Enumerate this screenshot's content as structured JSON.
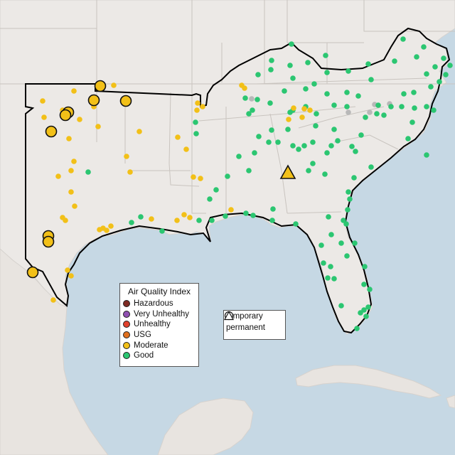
{
  "legend": {
    "title": "Air Quality Index",
    "levels": [
      {
        "label": "Hazardous",
        "color": "#7e2a22"
      },
      {
        "label": "Very Unhealthy",
        "color": "#8f4fb0"
      },
      {
        "label": "Unhealthy",
        "color": "#e0402c"
      },
      {
        "label": "USG",
        "color": "#e0701e"
      },
      {
        "label": "Moderate",
        "color": "#f2c018"
      },
      {
        "label": "Good",
        "color": "#2bc671"
      }
    ]
  },
  "shape_legend": {
    "temporary": "temporary",
    "permanent": "permanent"
  },
  "colors": {
    "water": "#c6d8e4",
    "land": "#ece9e6",
    "border": "#c8c4c0",
    "region_outline": "#000000",
    "inactive": "#b8b8b8"
  },
  "monitors": {
    "good": [
      [
        410,
        62
      ],
      [
        458,
        78
      ],
      [
        382,
        85
      ],
      [
        408,
        92
      ],
      [
        433,
        88
      ],
      [
        460,
        102
      ],
      [
        381,
        98
      ],
      [
        363,
        105
      ],
      [
        412,
        110
      ],
      [
        442,
        118
      ],
      [
        522,
        112
      ],
      [
        430,
        125
      ],
      [
        400,
        128
      ],
      [
        460,
        132
      ],
      [
        488,
        130
      ],
      [
        504,
        135
      ],
      [
        345,
        138
      ],
      [
        362,
        140
      ],
      [
        380,
        145
      ],
      [
        355,
        155
      ],
      [
        350,
        160
      ],
      [
        430,
        150
      ],
      [
        445,
        160
      ],
      [
        408,
        158
      ],
      [
        412,
        155
      ],
      [
        470,
        148
      ],
      [
        488,
        150
      ],
      [
        532,
        148
      ],
      [
        550,
        150
      ],
      [
        565,
        150
      ],
      [
        583,
        152
      ],
      [
        600,
        150
      ],
      [
        610,
        155
      ],
      [
        568,
        132
      ],
      [
        582,
        130
      ],
      [
        606,
        122
      ],
      [
        618,
        115
      ],
      [
        600,
        104
      ],
      [
        612,
        94
      ],
      [
        624,
        82
      ],
      [
        633,
        92
      ],
      [
        627,
        105
      ],
      [
        596,
        66
      ],
      [
        567,
        55
      ],
      [
        586,
        80
      ],
      [
        555,
        86
      ],
      [
        518,
        90
      ],
      [
        490,
        100
      ],
      [
        530,
        160
      ],
      [
        514,
        165
      ],
      [
        540,
        162
      ],
      [
        382,
        183
      ],
      [
        405,
        182
      ],
      [
        444,
        177
      ],
      [
        470,
        182
      ],
      [
        508,
        190
      ],
      [
        475,
        198
      ],
      [
        358,
        215
      ],
      [
        364,
        192
      ],
      [
        440,
        200
      ],
      [
        460,
        215
      ],
      [
        466,
        205
      ],
      [
        440,
        230
      ],
      [
        457,
        245
      ],
      [
        495,
        206
      ],
      [
        500,
        213
      ],
      [
        522,
        235
      ],
      [
        498,
        250
      ],
      [
        490,
        270
      ],
      [
        434,
        240
      ],
      [
        378,
        200
      ],
      [
        391,
        200
      ],
      [
        428,
        205
      ],
      [
        420,
        210
      ],
      [
        412,
        205
      ],
      [
        336,
        220
      ],
      [
        350,
        240
      ],
      [
        320,
        248
      ],
      [
        304,
        267
      ],
      [
        295,
        280
      ],
      [
        275,
        172
      ],
      [
        276,
        188
      ],
      [
        298,
        310
      ],
      [
        317,
        304
      ],
      [
        280,
        310
      ],
      [
        228,
        325
      ],
      [
        185,
        313
      ],
      [
        198,
        305
      ],
      [
        124,
        242
      ],
      [
        346,
        300
      ],
      [
        356,
        303
      ],
      [
        384,
        294
      ],
      [
        383,
        310
      ],
      [
        416,
        315
      ],
      [
        462,
        305
      ],
      [
        466,
        330
      ],
      [
        487,
        315
      ],
      [
        483,
        310
      ],
      [
        489,
        295
      ],
      [
        492,
        280
      ],
      [
        452,
        345
      ],
      [
        455,
        370
      ],
      [
        461,
        391
      ],
      [
        470,
        392
      ],
      [
        480,
        342
      ],
      [
        488,
        360
      ],
      [
        499,
        342
      ],
      [
        513,
        375
      ],
      [
        512,
        400
      ],
      [
        520,
        407
      ],
      [
        518,
        432
      ],
      [
        512,
        436
      ],
      [
        507,
        440
      ],
      [
        515,
        445
      ],
      [
        502,
        462
      ],
      [
        574,
        195
      ],
      [
        580,
        172
      ],
      [
        600,
        218
      ],
      [
        465,
        375
      ],
      [
        480,
        430
      ]
    ],
    "inactive": [
      [
        490,
        158
      ],
      [
        520,
        158
      ],
      [
        527,
        147
      ],
      [
        548,
        146
      ],
      [
        354,
        139
      ]
    ],
    "moderate": [
      [
        160,
        120
      ],
      [
        104,
        128
      ],
      [
        132,
        150
      ],
      [
        88,
        155
      ],
      [
        60,
        142
      ],
      [
        62,
        165
      ],
      [
        138,
        178
      ],
      [
        112,
        168
      ],
      [
        196,
        185
      ],
      [
        178,
        220
      ],
      [
        183,
        242
      ],
      [
        104,
        227
      ],
      [
        100,
        240
      ],
      [
        100,
        270
      ],
      [
        82,
        248
      ],
      [
        105,
        290
      ],
      [
        88,
        306
      ],
      [
        92,
        310
      ],
      [
        140,
        323
      ],
      [
        145,
        321
      ],
      [
        150,
        324
      ],
      [
        156,
        318
      ],
      [
        95,
        380
      ],
      [
        100,
        388
      ],
      [
        75,
        422
      ],
      [
        97,
        195
      ],
      [
        250,
        193
      ],
      [
        262,
        210
      ],
      [
        278,
        145
      ],
      [
        285,
        150
      ],
      [
        277,
        155
      ],
      [
        272,
        249
      ],
      [
        282,
        251
      ],
      [
        249,
        310
      ],
      [
        267,
        306
      ],
      [
        344,
        124
      ],
      [
        340,
        120
      ],
      [
        325,
        295
      ],
      [
        413,
        152
      ],
      [
        428,
        153
      ],
      [
        436,
        155
      ],
      [
        425,
        165
      ],
      [
        406,
        168
      ],
      [
        213,
        308
      ],
      [
        259,
        302
      ]
    ],
    "moderate_large": [
      [
        141,
        121
      ],
      [
        132,
        141
      ],
      [
        177,
        142
      ],
      [
        96,
        158
      ],
      [
        92,
        162
      ],
      [
        72,
        185
      ],
      [
        68,
        332
      ],
      [
        68,
        340
      ],
      [
        46,
        383
      ]
    ],
    "moderate_triangle": [
      [
        405,
        244
      ]
    ]
  }
}
